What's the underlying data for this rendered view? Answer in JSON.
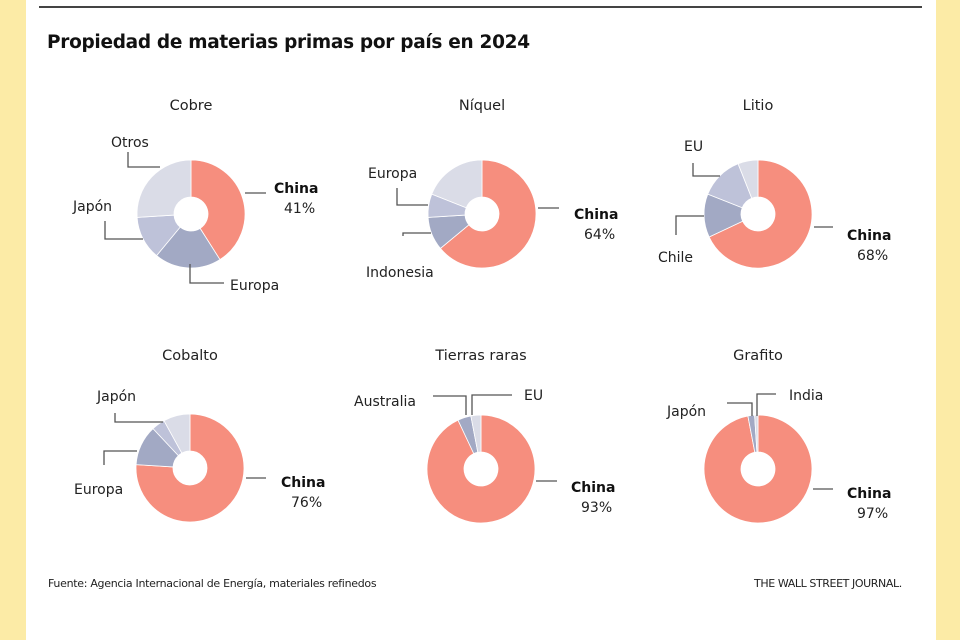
{
  "title": "Propiedad de materias primas por país en 2024",
  "source": "Fuente: Agencia Internacional de Energía, materiales refinedos",
  "brand": "THE WALL STREET JOURNAL.",
  "colors": {
    "china": "#F68E7E",
    "dark": "#A2A9C4",
    "medium": "#BEC2D9",
    "light": "#DADCE7",
    "leader": "#555555",
    "side": "#FCEBA6"
  },
  "chart_data": [
    {
      "type": "pie",
      "variant": "donut",
      "title": "Cobre",
      "slices": [
        {
          "label": "China",
          "value": 41,
          "shown_value": "41%",
          "tone": "china"
        },
        {
          "label": "Europa",
          "value": 20,
          "tone": "dark"
        },
        {
          "label": "Japón",
          "value": 13,
          "tone": "medium"
        },
        {
          "label": "Otros",
          "value": 26,
          "tone": "light"
        }
      ]
    },
    {
      "type": "pie",
      "variant": "donut",
      "title": "Níquel",
      "slices": [
        {
          "label": "China",
          "value": 64,
          "shown_value": "64%",
          "tone": "china"
        },
        {
          "label": "Indonesia",
          "value": 10,
          "tone": "dark"
        },
        {
          "label": "Europa",
          "value": 7,
          "tone": "medium"
        },
        {
          "label": "",
          "value": 19,
          "tone": "light"
        }
      ]
    },
    {
      "type": "pie",
      "variant": "donut",
      "title": "Litio",
      "slices": [
        {
          "label": "China",
          "value": 68,
          "shown_value": "68%",
          "tone": "china"
        },
        {
          "label": "Chile",
          "value": 13,
          "tone": "dark"
        },
        {
          "label": "EU",
          "value": 13,
          "tone": "medium"
        },
        {
          "label": "",
          "value": 6,
          "tone": "light"
        }
      ]
    },
    {
      "type": "pie",
      "variant": "donut",
      "title": "Cobalto",
      "slices": [
        {
          "label": "China",
          "value": 76,
          "shown_value": "76%",
          "tone": "china"
        },
        {
          "label": "Europa",
          "value": 12,
          "tone": "dark"
        },
        {
          "label": "Japón",
          "value": 4,
          "tone": "medium"
        },
        {
          "label": "",
          "value": 8,
          "tone": "light"
        }
      ]
    },
    {
      "type": "pie",
      "variant": "donut",
      "title": "Tierras raras",
      "slices": [
        {
          "label": "China",
          "value": 93,
          "shown_value": "93%",
          "tone": "china"
        },
        {
          "label": "Australia",
          "value": 4,
          "tone": "dark"
        },
        {
          "label": "EU",
          "value": 3,
          "tone": "light"
        }
      ]
    },
    {
      "type": "pie",
      "variant": "donut",
      "title": "Grafito",
      "slices": [
        {
          "label": "China",
          "value": 97,
          "shown_value": "97%",
          "tone": "china"
        },
        {
          "label": "Japón",
          "value": 2,
          "tone": "dark"
        },
        {
          "label": "India",
          "value": 1,
          "tone": "light"
        }
      ]
    }
  ]
}
